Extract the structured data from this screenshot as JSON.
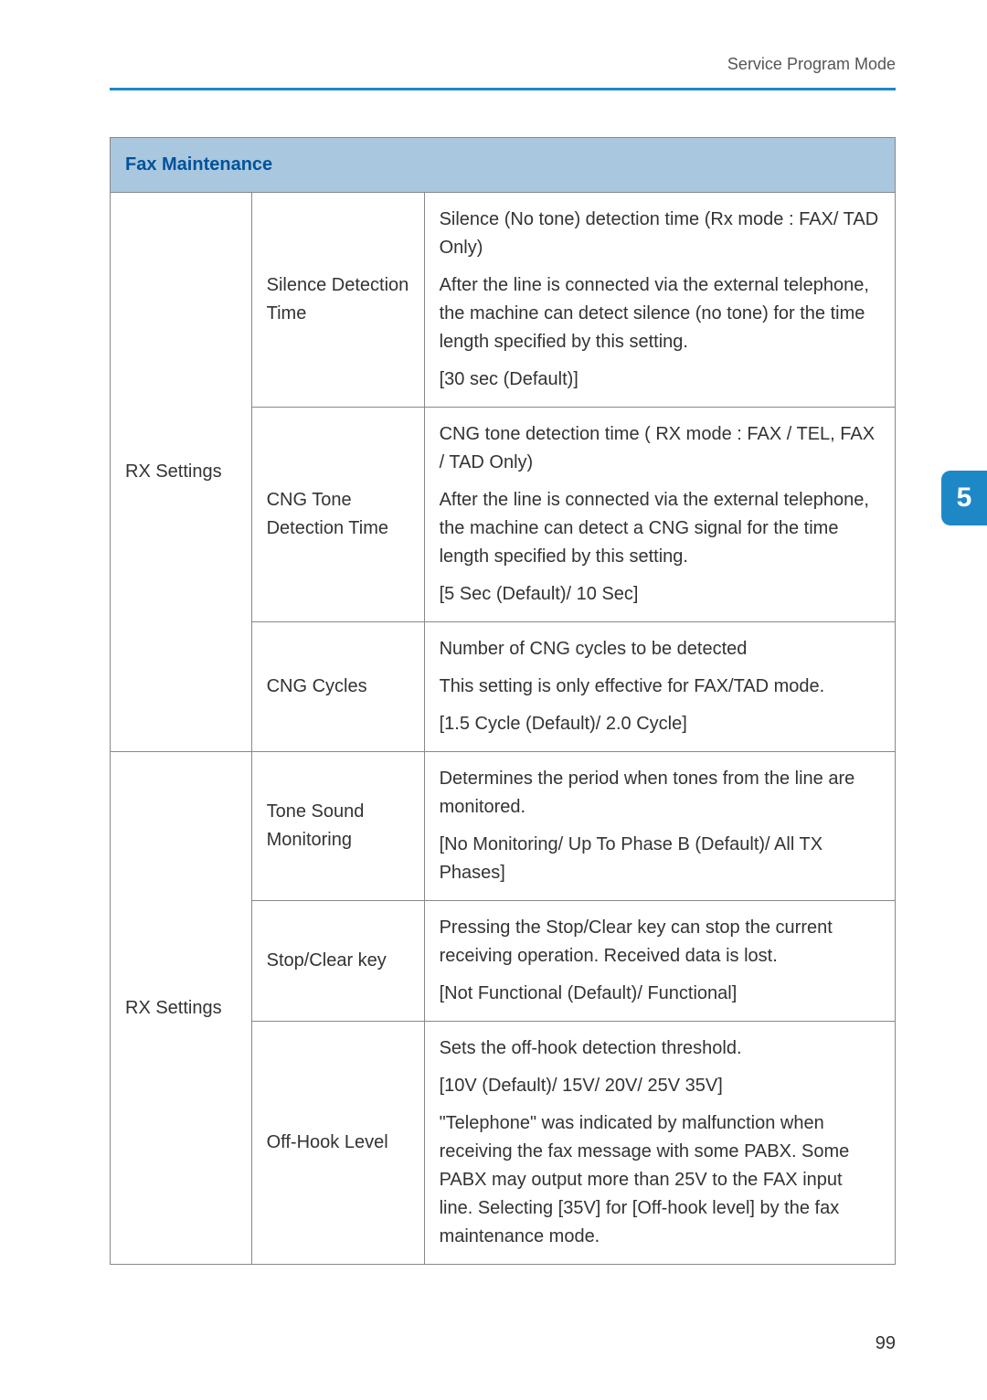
{
  "header_text": "Service Program Mode",
  "section_tab_number": "5",
  "page_number": "99",
  "table": {
    "section_title": "Fax Maintenance",
    "groups": [
      {
        "group_label": "RX Settings",
        "rows": [
          {
            "setting": "Silence Detection Time",
            "desc_paras": [
              "Silence (No tone) detection time (Rx mode : FAX/ TAD Only)",
              "After the line is connected via the external telephone, the machine can detect silence (no tone) for the time length specified by this setting.",
              "[30 sec (Default)]"
            ]
          },
          {
            "setting": "CNG Tone Detection Time",
            "desc_paras": [
              "CNG tone detection time ( RX mode : FAX / TEL, FAX / TAD Only)",
              "After the line is connected via the external telephone, the machine can detect a CNG signal for the time length specified by this setting.",
              "[5 Sec (Default)/ 10 Sec]"
            ]
          },
          {
            "setting": "CNG Cycles",
            "desc_paras": [
              "Number of CNG cycles to be detected",
              "This setting is only effective for FAX/TAD mode.",
              "[1.5 Cycle (Default)/ 2.0 Cycle]"
            ]
          }
        ]
      },
      {
        "group_label": "RX Settings",
        "rows": [
          {
            "setting": "Tone Sound Monitoring",
            "desc_paras": [
              "Determines the period when tones from the line are monitored.",
              "[No Monitoring/ Up To Phase B (Default)/ All TX Phases]"
            ]
          },
          {
            "setting": "Stop/Clear key",
            "desc_paras": [
              "Pressing the Stop/Clear key can stop the current receiving operation. Received data is lost.",
              "[Not Functional (Default)/ Functional]"
            ]
          },
          {
            "setting": "Off-Hook Level",
            "desc_paras": [
              "Sets the off-hook detection threshold.",
              "[10V (Default)/ 15V/ 20V/ 25V 35V]",
              "\"Telephone\" was indicated by malfunction when receiving the fax message with some PABX. Some PABX may output more than 25V to the FAX input line. Selecting [35V] for [Off-hook level] by the fax maintenance mode."
            ]
          }
        ]
      }
    ]
  }
}
